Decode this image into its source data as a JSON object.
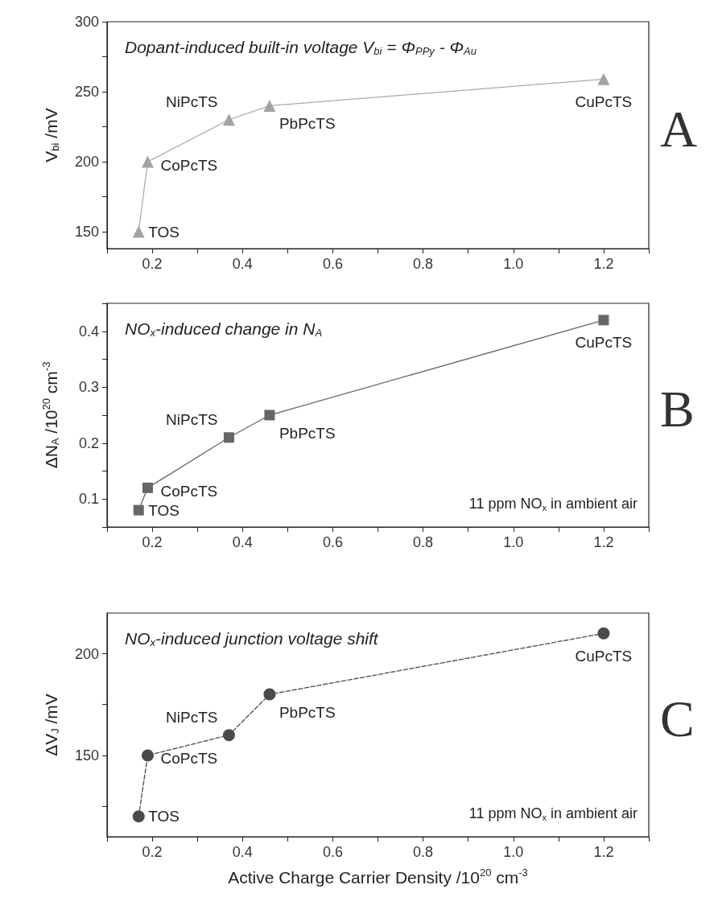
{
  "chart_data": [
    {
      "type": "line",
      "title": "Dopant-induced built-in voltage V$_{bi}$ = Φ$_{PPy}$ - Φ$_{Au}$",
      "ylabel": "V$_{bi}$ /mV",
      "x": [
        0.17,
        0.19,
        0.37,
        0.46,
        1.2
      ],
      "series": [
        {
          "color": "#a3a3a3",
          "values": [
            150,
            200,
            230,
            240,
            259
          ]
        }
      ],
      "marker": "triangle",
      "line_style": "dotted",
      "grid": false,
      "xlim": [
        0.1,
        1.3
      ],
      "xticks": [
        {
          "value": 0.1,
          "label": null
        },
        0.2,
        {
          "value": 0.3,
          "label": null
        },
        0.4,
        {
          "value": 0.5,
          "label": null
        },
        0.6,
        {
          "value": 0.7,
          "label": null
        },
        0.8,
        {
          "value": 0.9,
          "label": null
        },
        {
          "value": 1,
          "label": "1.0"
        },
        {
          "value": 1.1,
          "label": null
        },
        1.2,
        {
          "value": 1.3,
          "label": null
        }
      ],
      "ylim": [
        138,
        300
      ],
      "yticks": [
        150,
        {
          "value": 175,
          "label": null
        },
        200,
        {
          "value": 225,
          "label": null
        },
        250,
        {
          "value": 275,
          "label": null
        },
        300
      ],
      "annotations": [
        "A",
        {
          "text": "TOS",
          "x": 0.17,
          "y": 150
        },
        {
          "text": "CoPcTS",
          "x": 0.19,
          "y": 200
        },
        {
          "text": "NiPcTS",
          "x": 0.37,
          "y": 230
        },
        {
          "text": "PbPcTS",
          "x": 0.46,
          "y": 240
        },
        {
          "text": "CuPcTS",
          "x": 1.2,
          "y": 259
        }
      ]
    },
    {
      "type": "line",
      "title": "NO$_{x}$-induced change in N$_{A}$",
      "ylabel": "ΔN$_{A}$ /10$^{20}$ cm$^{-3}$",
      "x": [
        0.17,
        0.19,
        0.37,
        0.46,
        1.2
      ],
      "series": [
        {
          "color": "#666666",
          "values": [
            0.08,
            0.12,
            0.21,
            0.25,
            0.42
          ]
        }
      ],
      "marker": "square",
      "line_style": "solid",
      "grid": false,
      "xlim": [
        0.1,
        1.3
      ],
      "xticks": [
        {
          "value": 0.1,
          "label": null
        },
        0.2,
        {
          "value": 0.3,
          "label": null
        },
        0.4,
        {
          "value": 0.5,
          "label": null
        },
        0.6,
        {
          "value": 0.7,
          "label": null
        },
        0.8,
        {
          "value": 0.9,
          "label": null
        },
        {
          "value": 1,
          "label": "1.0"
        },
        {
          "value": 1.1,
          "label": null
        },
        1.2,
        {
          "value": 1.3,
          "label": null
        }
      ],
      "ylim": [
        0.05,
        0.45
      ],
      "yticks": [
        {
          "value": 0.05,
          "label": null
        },
        0.1,
        {
          "value": 0.15,
          "label": null
        },
        0.2,
        {
          "value": 0.25,
          "label": null
        },
        0.3,
        {
          "value": 0.35,
          "label": null
        },
        0.4,
        {
          "value": 0.45,
          "label": null
        }
      ],
      "annotations": [
        "B",
        "11 ppm NO$_{x}$ in ambient air",
        {
          "text": "TOS",
          "x": 0.17,
          "y": 0.08
        },
        {
          "text": "CoPcTS",
          "x": 0.19,
          "y": 0.12
        },
        {
          "text": "NiPcTS",
          "x": 0.37,
          "y": 0.21
        },
        {
          "text": "PbPcTS",
          "x": 0.46,
          "y": 0.25
        },
        {
          "text": "CuPcTS",
          "x": 1.2,
          "y": 0.42
        }
      ]
    },
    {
      "type": "line",
      "title": "NO$_{x}$-induced junction voltage shift",
      "ylabel": "ΔV$_{J}$ /mV",
      "xlabel": "Active Charge Carrier Density /10$^{20}$ cm$^{-3}$",
      "x": [
        0.17,
        0.19,
        0.37,
        0.46,
        1.2
      ],
      "series": [
        {
          "color": "#4a4a4a",
          "values": [
            120,
            150,
            160,
            180,
            210
          ]
        }
      ],
      "marker": "circle",
      "line_style": "dashed",
      "grid": false,
      "xlim": [
        0.1,
        1.3
      ],
      "xticks": [
        {
          "value": 0.1,
          "label": null
        },
        0.2,
        {
          "value": 0.3,
          "label": null
        },
        0.4,
        {
          "value": 0.5,
          "label": null
        },
        0.6,
        {
          "value": 0.7,
          "label": null
        },
        0.8,
        {
          "value": 0.9,
          "label": null
        },
        {
          "value": 1,
          "label": "1.0"
        },
        {
          "value": 1.1,
          "label": null
        },
        1.2,
        {
          "value": 1.3,
          "label": null
        }
      ],
      "ylim": [
        110,
        220
      ],
      "yticks": [
        {
          "value": 125,
          "label": null
        },
        150,
        {
          "value": 175,
          "label": null
        },
        200
      ],
      "annotations": [
        "C",
        "11 ppm NO$_{x}$ in ambient air",
        {
          "text": "TOS",
          "x": 0.17,
          "y": 120
        },
        {
          "text": "CoPcTS",
          "x": 0.19,
          "y": 150
        },
        {
          "text": "NiPcTS",
          "x": 0.37,
          "y": 160
        },
        {
          "text": "PbPcTS",
          "x": 0.46,
          "y": 180
        },
        {
          "text": "CuPcTS",
          "x": 1.2,
          "y": 210
        }
      ]
    }
  ]
}
